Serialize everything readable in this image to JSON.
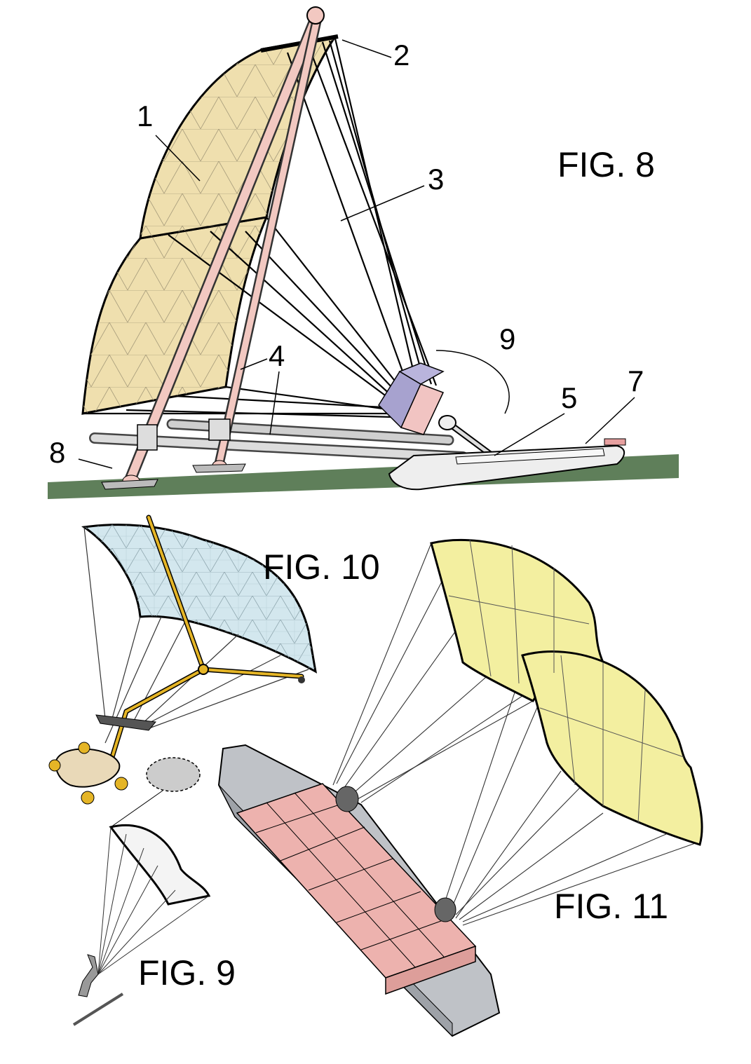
{
  "figures": [
    {
      "id": "fig8",
      "title": "FIG. 8"
    },
    {
      "id": "fig10",
      "title": "FIG. 10"
    },
    {
      "id": "fig11",
      "title": "FIG. 11"
    },
    {
      "id": "fig9",
      "title": "FIG. 9"
    }
  ],
  "fig8_labels": {
    "sail": "1",
    "top_spar": "2",
    "lines": "3",
    "mast": "4",
    "pivot": "5",
    "hull": "7",
    "skid": "8",
    "arc": "9"
  },
  "colors": {
    "sail8": "#efdfae",
    "sail10": "#d3e7ee",
    "sail11": "#f3efa0",
    "mast": "#f2c8c1",
    "boom": "#c9c9c9",
    "ground": "#5f7f5a",
    "hull": "#eeeeee",
    "box": "#a7a2cf",
    "box_side": "#f1c4c2",
    "cargo": "#edb2ae",
    "ship": "#bfc2c7",
    "frame10": "#e5b526"
  }
}
